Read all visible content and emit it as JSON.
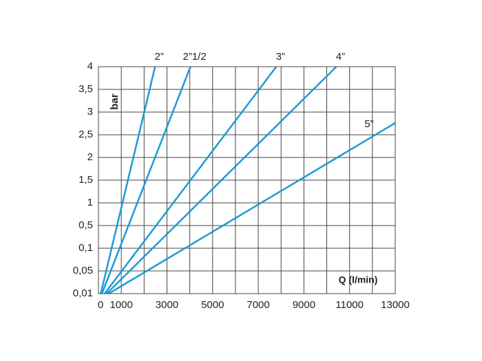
{
  "chart_data": {
    "type": "line",
    "y_label": "bar",
    "x_label": "Q (l/min)",
    "color": "#1c9ad6",
    "xlim": [
      0,
      13000
    ],
    "xticks": [
      0,
      1000,
      3000,
      5000,
      7000,
      9000,
      11000,
      13000
    ],
    "x_minor_ticks": [
      2000,
      4000,
      6000,
      8000,
      10000,
      12000
    ],
    "ylim": [
      0.01,
      4
    ],
    "yticks": [
      {
        "value": 0.01,
        "label": "0,01"
      },
      {
        "value": 0.05,
        "label": "0,05"
      },
      {
        "value": 0.1,
        "label": "0,1"
      },
      {
        "value": 0.5,
        "label": "0,5"
      },
      1,
      {
        "value": 1.5,
        "label": "1,5"
      },
      2,
      {
        "value": 2.5,
        "label": "2,5"
      },
      3,
      {
        "value": 3.5,
        "label": "3,5"
      },
      4
    ],
    "y_scale": "evenly spaced ticks",
    "grid": true,
    "series": [
      {
        "name": "2”",
        "x": [
          100,
          2480
        ],
        "values": [
          0.01,
          4
        ]
      },
      {
        "name": "2”1/2",
        "x": [
          150,
          4030
        ],
        "values": [
          0.01,
          4
        ]
      },
      {
        "name": "3”",
        "x": [
          270,
          7790
        ],
        "values": [
          0.01,
          4
        ]
      },
      {
        "name": "4”",
        "x": [
          360,
          10420
        ],
        "values": [
          0.01,
          4
        ]
      },
      {
        "name": "5”",
        "x": [
          450,
          13000
        ],
        "values": [
          0.01,
          2.76
        ]
      }
    ]
  }
}
